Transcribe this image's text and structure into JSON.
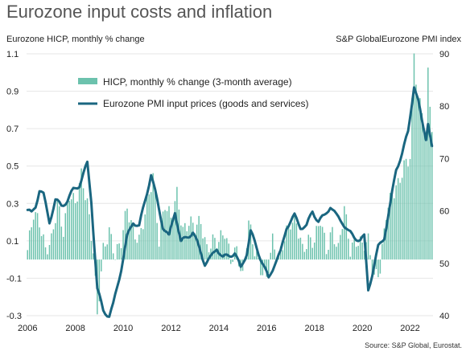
{
  "chart_data": {
    "type": "bar+line",
    "title": "Eurozone input costs and inflation",
    "y_left_label": "Eurozone HICP, monthly % change",
    "y_right_label": "S&P GlobalEurozone PMI index",
    "source": "Source: S&P Global, Eurostat.",
    "y_left_ticks": [
      1.1,
      0.9,
      0.7,
      0.5,
      0.3,
      0.1,
      -0.1,
      -0.3
    ],
    "y_left_range": [
      -0.3,
      1.1
    ],
    "y_right_ticks": [
      90,
      80,
      70,
      60,
      50,
      40
    ],
    "y_right_range": [
      40,
      90
    ],
    "x_ticks": [
      "2006",
      "2008",
      "2010",
      "2012",
      "2014",
      "2016",
      "2018",
      "2020",
      "2022"
    ],
    "x_range": [
      "2006-01",
      "2022-12"
    ],
    "legend": [
      {
        "name": "HICP, monthly % change (3-month average)",
        "color": "#6cc2ad",
        "kind": "bar"
      },
      {
        "name": "Eurozone PMI input prices (goods and services)",
        "color": "#1a6680",
        "kind": "line"
      }
    ],
    "hicp_keyframes": [
      [
        "2006-01",
        0.05
      ],
      [
        "2006-04",
        0.25
      ],
      [
        "2006-07",
        0.2
      ],
      [
        "2006-10",
        0.05
      ],
      [
        "2007-01",
        0.1
      ],
      [
        "2007-04",
        0.3
      ],
      [
        "2007-07",
        0.15
      ],
      [
        "2007-10",
        0.35
      ],
      [
        "2008-01",
        0.3
      ],
      [
        "2008-04",
        0.45
      ],
      [
        "2008-07",
        0.3
      ],
      [
        "2008-10",
        0.05
      ],
      [
        "2008-12",
        -0.3
      ],
      [
        "2009-03",
        0.05
      ],
      [
        "2009-06",
        0.15
      ],
      [
        "2009-09",
        0.02
      ],
      [
        "2009-12",
        0.1
      ],
      [
        "2010-03",
        0.28
      ],
      [
        "2010-06",
        0.15
      ],
      [
        "2010-09",
        0.1
      ],
      [
        "2011-01",
        0.3
      ],
      [
        "2011-04",
        0.45
      ],
      [
        "2011-07",
        0.1
      ],
      [
        "2011-10",
        0.3
      ],
      [
        "2012-01",
        0.22
      ],
      [
        "2012-04",
        0.35
      ],
      [
        "2012-07",
        0.15
      ],
      [
        "2012-10",
        0.2
      ],
      [
        "2013-01",
        0.18
      ],
      [
        "2013-04",
        0.2
      ],
      [
        "2013-07",
        0.05
      ],
      [
        "2013-10",
        0.1
      ],
      [
        "2014-01",
        0.1
      ],
      [
        "2014-04",
        0.15
      ],
      [
        "2014-07",
        0.0
      ],
      [
        "2014-10",
        0.05
      ],
      [
        "2015-01",
        -0.1
      ],
      [
        "2015-04",
        0.2
      ],
      [
        "2015-07",
        0.05
      ],
      [
        "2015-10",
        -0.05
      ],
      [
        "2016-01",
        -0.1
      ],
      [
        "2016-04",
        0.1
      ],
      [
        "2016-07",
        0.0
      ],
      [
        "2016-10",
        0.12
      ],
      [
        "2017-01",
        0.2
      ],
      [
        "2017-04",
        0.2
      ],
      [
        "2017-07",
        0.05
      ],
      [
        "2017-10",
        0.1
      ],
      [
        "2018-01",
        0.1
      ],
      [
        "2018-04",
        0.22
      ],
      [
        "2018-07",
        0.05
      ],
      [
        "2018-10",
        0.15
      ],
      [
        "2019-01",
        0.05
      ],
      [
        "2019-04",
        0.28
      ],
      [
        "2019-07",
        0.05
      ],
      [
        "2019-10",
        0.1
      ],
      [
        "2020-01",
        0.08
      ],
      [
        "2020-04",
        0.1
      ],
      [
        "2020-07",
        -0.1
      ],
      [
        "2020-10",
        -0.05
      ],
      [
        "2021-01",
        0.25
      ],
      [
        "2021-04",
        0.35
      ],
      [
        "2021-07",
        0.4
      ],
      [
        "2021-10",
        0.5
      ],
      [
        "2022-01",
        0.55
      ],
      [
        "2022-03",
        1.1
      ],
      [
        "2022-05",
        0.85
      ],
      [
        "2022-07",
        0.8
      ],
      [
        "2022-09",
        0.65
      ],
      [
        "2022-10",
        1.0
      ],
      [
        "2022-12",
        0.7
      ]
    ],
    "pmi_keyframes": [
      [
        "2006-01",
        60
      ],
      [
        "2006-03",
        59.5
      ],
      [
        "2006-05",
        61
      ],
      [
        "2006-07",
        64
      ],
      [
        "2006-09",
        63
      ],
      [
        "2006-12",
        58
      ],
      [
        "2007-03",
        62
      ],
      [
        "2007-06",
        61
      ],
      [
        "2007-09",
        62
      ],
      [
        "2007-12",
        64
      ],
      [
        "2008-03",
        65
      ],
      [
        "2008-06",
        68
      ],
      [
        "2008-07",
        69
      ],
      [
        "2008-09",
        62
      ],
      [
        "2008-12",
        45
      ],
      [
        "2009-03",
        41
      ],
      [
        "2009-06",
        40
      ],
      [
        "2009-08",
        42
      ],
      [
        "2009-12",
        49
      ],
      [
        "2010-03",
        55
      ],
      [
        "2010-06",
        58
      ],
      [
        "2010-09",
        57
      ],
      [
        "2010-12",
        62
      ],
      [
        "2011-03",
        67
      ],
      [
        "2011-06",
        62
      ],
      [
        "2011-09",
        57
      ],
      [
        "2011-12",
        55
      ],
      [
        "2012-03",
        60
      ],
      [
        "2012-06",
        54
      ],
      [
        "2012-09",
        55
      ],
      [
        "2012-12",
        56
      ],
      [
        "2013-03",
        53
      ],
      [
        "2013-06",
        50
      ],
      [
        "2013-09",
        51
      ],
      [
        "2013-12",
        53
      ],
      [
        "2014-03",
        51
      ],
      [
        "2014-06",
        51.5
      ],
      [
        "2014-09",
        52
      ],
      [
        "2014-12",
        49
      ],
      [
        "2015-03",
        52
      ],
      [
        "2015-05",
        56
      ],
      [
        "2015-08",
        53
      ],
      [
        "2015-11",
        50
      ],
      [
        "2016-02",
        47
      ],
      [
        "2016-05",
        50
      ],
      [
        "2016-08",
        52
      ],
      [
        "2016-11",
        57
      ],
      [
        "2017-03",
        59
      ],
      [
        "2017-06",
        57
      ],
      [
        "2017-09",
        57
      ],
      [
        "2017-12",
        60
      ],
      [
        "2018-03",
        58
      ],
      [
        "2018-06",
        59
      ],
      [
        "2018-09",
        61
      ],
      [
        "2018-12",
        59
      ],
      [
        "2019-03",
        58
      ],
      [
        "2019-06",
        56
      ],
      [
        "2019-09",
        55
      ],
      [
        "2019-12",
        54.5
      ],
      [
        "2020-02",
        55
      ],
      [
        "2020-04",
        45
      ],
      [
        "2020-06",
        48
      ],
      [
        "2020-09",
        53
      ],
      [
        "2020-12",
        55
      ],
      [
        "2021-03",
        61
      ],
      [
        "2021-06",
        68
      ],
      [
        "2021-09",
        71
      ],
      [
        "2021-12",
        75
      ],
      [
        "2022-03",
        84
      ],
      [
        "2022-05",
        81
      ],
      [
        "2022-07",
        77
      ],
      [
        "2022-09",
        74
      ],
      [
        "2022-10",
        77
      ],
      [
        "2022-12",
        72
      ]
    ]
  }
}
